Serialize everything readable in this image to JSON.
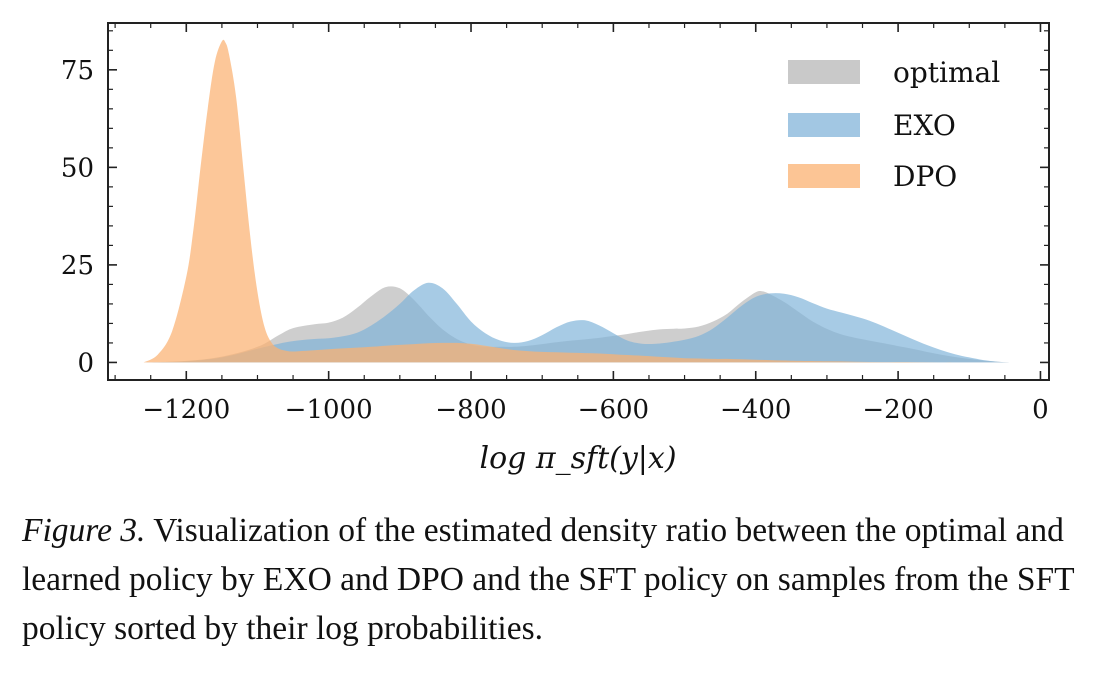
{
  "chart_data": {
    "type": "area",
    "title": "",
    "xlabel": "log π_sft(y|x)",
    "ylabel": "",
    "xlim": [
      -1310,
      12
    ],
    "ylim": [
      -4.5,
      87
    ],
    "xticks": [
      -1200,
      -1000,
      -800,
      -600,
      -400,
      -200,
      0
    ],
    "xtick_labels": [
      "−1200",
      "−1000",
      "−800",
      "−600",
      "−400",
      "−200",
      "0"
    ],
    "yticks": [
      0,
      25,
      50,
      75
    ],
    "ytick_labels": [
      "0",
      "25",
      "50",
      "75"
    ],
    "legend_position": "top-right",
    "series": [
      {
        "name": "optimal",
        "color": "#c0c0c0",
        "x": [
          -1260,
          -1200,
          -1150,
          -1100,
          -1070,
          -1050,
          -1020,
          -1000,
          -980,
          -960,
          -940,
          -920,
          -900,
          -880,
          -860,
          -840,
          -820,
          -800,
          -780,
          -760,
          -740,
          -720,
          -700,
          -680,
          -660,
          -640,
          -620,
          -600,
          -580,
          -560,
          -540,
          -520,
          -500,
          -480,
          -460,
          -440,
          -420,
          -400,
          -390,
          -380,
          -360,
          -340,
          -320,
          -300,
          -280,
          -260,
          -240,
          -220,
          -200,
          -180,
          -160,
          -140,
          -120,
          -100,
          -80,
          -60,
          -40
        ],
        "values": [
          0,
          0.4,
          1.5,
          4,
          7,
          8.8,
          9.8,
          10.2,
          11.5,
          14,
          17,
          19.3,
          19,
          16,
          12,
          8.5,
          6,
          4.6,
          4,
          4,
          4,
          4.3,
          4.7,
          5.2,
          5.6,
          5.9,
          6.3,
          6.8,
          7.3,
          7.9,
          8.4,
          8.6,
          8.7,
          9.2,
          10.5,
          12.5,
          15.5,
          18,
          18.2,
          17.5,
          15.5,
          13,
          10.5,
          8.6,
          7.2,
          6.3,
          5.6,
          4.9,
          4.2,
          3.5,
          2.7,
          2,
          1.4,
          0.9,
          0.5,
          0.2,
          0
        ]
      },
      {
        "name": "EXO",
        "color": "#7eb2d8",
        "x": [
          -1260,
          -1200,
          -1150,
          -1100,
          -1080,
          -1060,
          -1040,
          -1020,
          -1000,
          -980,
          -960,
          -940,
          -920,
          -900,
          -880,
          -860,
          -840,
          -820,
          -800,
          -780,
          -760,
          -740,
          -720,
          -700,
          -680,
          -660,
          -640,
          -620,
          -600,
          -580,
          -560,
          -540,
          -520,
          -500,
          -480,
          -460,
          -440,
          -420,
          -400,
          -380,
          -360,
          -340,
          -320,
          -300,
          -280,
          -260,
          -240,
          -220,
          -200,
          -180,
          -160,
          -140,
          -120,
          -100,
          -80,
          -60,
          -40
        ],
        "values": [
          0,
          0.3,
          1.3,
          3.5,
          4.4,
          5.2,
          5.7,
          6,
          6.2,
          6.7,
          7.6,
          9.5,
          12,
          15,
          18.5,
          20.4,
          19,
          15,
          10.5,
          7.5,
          5.7,
          5,
          5.5,
          7,
          9,
          10.5,
          10.8,
          9.5,
          7.5,
          5.6,
          4.8,
          4.8,
          5.2,
          5.8,
          6.8,
          8.7,
          11.5,
          14.5,
          16.8,
          17.7,
          17.6,
          16.7,
          15.2,
          13.8,
          12.8,
          11.8,
          10.7,
          9.2,
          7.6,
          6,
          4.5,
          3.2,
          2.1,
          1.3,
          0.6,
          0.2,
          0
        ]
      },
      {
        "name": "DPO",
        "color": "#fbb272",
        "x": [
          -1260,
          -1240,
          -1220,
          -1200,
          -1190,
          -1180,
          -1170,
          -1160,
          -1150,
          -1145,
          -1140,
          -1130,
          -1120,
          -1110,
          -1100,
          -1090,
          -1080,
          -1070,
          -1060,
          -1050,
          -1040,
          -1020,
          -1000,
          -980,
          -960,
          -940,
          -920,
          -900,
          -880,
          -860,
          -840,
          -820,
          -800,
          -780,
          -760,
          -740,
          -720,
          -700,
          -680,
          -660,
          -640,
          -620,
          -600,
          -580,
          -560,
          -540,
          -520,
          -500,
          -480,
          -460,
          -440,
          -420,
          -400,
          -380,
          -360,
          -340,
          -300,
          -260,
          -220,
          -180,
          -140,
          -100,
          -40
        ],
        "values": [
          0,
          2,
          8,
          22,
          34,
          50,
          65,
          77,
          82.3,
          82,
          79,
          68,
          50,
          32,
          18,
          9,
          5,
          3.5,
          3,
          2.8,
          2.9,
          3.1,
          3.4,
          3.6,
          3.8,
          4,
          4.3,
          4.5,
          4.7,
          4.9,
          5,
          5,
          4.8,
          4.3,
          3.7,
          3.2,
          2.9,
          2.7,
          2.6,
          2.5,
          2.4,
          2.3,
          2.1,
          1.9,
          1.7,
          1.5,
          1.3,
          1.1,
          1,
          0.9,
          0.9,
          0.8,
          0.7,
          0.6,
          0.5,
          0.4,
          0.3,
          0.2,
          0.1,
          0.1,
          0,
          0,
          0
        ]
      }
    ]
  },
  "caption": {
    "label": "Figure 3.",
    "text": "Visualization of the estimated density ratio between the optimal and learned policy by EXO and DPO and the SFT policy on samples from the SFT policy sorted by their log probabilities."
  }
}
